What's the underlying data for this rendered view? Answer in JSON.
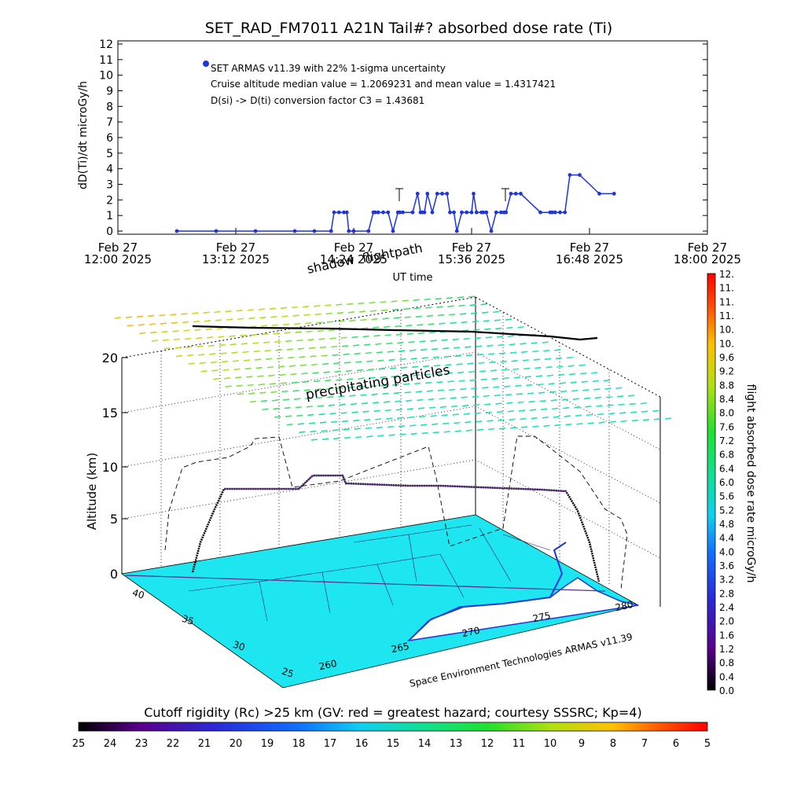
{
  "title": "SET_RAD_FM7011  A21N Tail#? absorbed dose rate (Ti)",
  "top_plot": {
    "ylabel": "dD(Ti)/dt microGy/h",
    "xlabel": "UT time",
    "yticks": [
      "0",
      "1",
      "2",
      "3",
      "4",
      "5",
      "6",
      "7",
      "8",
      "9",
      "10",
      "11",
      "12"
    ],
    "xticks": [
      {
        "top": "Feb 27",
        "bottom": "12:00 2025"
      },
      {
        "top": "Feb 27",
        "bottom": "13:12 2025"
      },
      {
        "top": "Feb 27",
        "bottom": "14:24 2025"
      },
      {
        "top": "Feb 27",
        "bottom": "15:36 2025"
      },
      {
        "top": "Feb 27",
        "bottom": "16:48 2025"
      },
      {
        "top": "Feb 27",
        "bottom": "18:00 2025"
      }
    ],
    "legend_series": "SET ARMAS v11.39 with 22% 1-sigma uncertainty",
    "annotation_median": "Cruise altitude median value = 1.2069231 and mean value = 1.4317421",
    "annotation_c3": "D(si) -> D(ti) conversion factor C3 = 1.43681",
    "series_color": "#1f35d6"
  },
  "chart_data": [
    {
      "type": "line",
      "title": "SET_RAD_FM7011  A21N Tail#? absorbed dose rate (Ti)",
      "xlabel": "UT time",
      "ylabel": "dD(Ti)/dt microGy/h",
      "x_unit": "hours UT, Feb 27 2025",
      "xlim": [
        12.0,
        18.0
      ],
      "ylim": [
        0,
        12
      ],
      "series": [
        {
          "name": "SET ARMAS v11.39 with 22% 1-sigma uncertainty",
          "x": [
            12.6,
            13.0,
            13.4,
            13.8,
            14.0,
            14.17,
            14.2,
            14.25,
            14.3,
            14.33,
            14.35,
            14.4,
            14.55,
            14.6,
            14.62,
            14.65,
            14.7,
            14.75,
            14.8,
            14.85,
            14.87,
            14.9,
            15.0,
            15.05,
            15.08,
            15.1,
            15.12,
            15.15,
            15.2,
            15.25,
            15.3,
            15.35,
            15.38,
            15.42,
            15.45,
            15.5,
            15.55,
            15.6,
            15.62,
            15.65,
            15.7,
            15.72,
            15.75,
            15.8,
            15.85,
            15.9,
            15.93,
            15.95,
            16.0,
            16.05,
            16.1,
            16.3,
            16.4,
            16.42,
            16.45,
            16.5,
            16.55,
            16.6,
            16.7,
            16.9,
            17.05
          ],
          "y": [
            0,
            0,
            0,
            0,
            0,
            0,
            1.2,
            1.2,
            1.2,
            1.2,
            0,
            0,
            0,
            1.2,
            1.2,
            1.2,
            1.2,
            1.2,
            0,
            1.2,
            1.2,
            1.2,
            1.2,
            2.4,
            1.2,
            1.2,
            1.2,
            2.4,
            1.2,
            2.4,
            2.4,
            2.4,
            1.2,
            1.2,
            0,
            1.2,
            1.2,
            1.2,
            2.4,
            1.2,
            1.2,
            1.2,
            1.2,
            0,
            1.2,
            1.2,
            1.2,
            1.2,
            2.4,
            2.4,
            2.4,
            1.2,
            1.2,
            1.2,
            1.2,
            1.2,
            1.2,
            3.6,
            3.6,
            2.4,
            2.4
          ]
        }
      ]
    },
    {
      "type": "scatter",
      "title": "",
      "zlabel": "Altitude (km)",
      "zticks": [
        "0",
        "5",
        "10",
        "15",
        "20"
      ],
      "lat_ticks": [
        "25",
        "30",
        "35",
        "40"
      ],
      "lon_ticks": [
        "260",
        "265",
        "270",
        "275",
        "280"
      ],
      "annotations": [
        "shadow",
        "flightpath",
        "precipitating particles"
      ],
      "credit": "Space Environment Technologies ARMAS v11.39",
      "flight_altitude_km": [
        0.5,
        3.0,
        7.8,
        7.8,
        8.6,
        8.6,
        8.4,
        8.3,
        7.8,
        7.5,
        3.0,
        0.2
      ],
      "particles_altitude_km": 25,
      "colorbar": {
        "label": "flight absorbed dose rate microGy/h",
        "ticks": [
          "0.0",
          "0.4",
          "0.8",
          "1.2",
          "1.6",
          "2.0",
          "2.4",
          "2.8",
          "3.2",
          "3.6",
          "4.0",
          "4.4",
          "4.8",
          "5.2",
          "5.6",
          "6.0",
          "6.4",
          "6.8",
          "7.2",
          "7.6",
          "8.0",
          "8.4",
          "8.8",
          "9.2",
          "9.6",
          "10.",
          "10.",
          "11.",
          "11.",
          "11.",
          "12."
        ]
      }
    },
    {
      "type": "heatmap",
      "title": "Cutoff rigidity (Rc) >25 km (GV: red = greatest hazard; courtesy SSSRC; Kp=4)",
      "ticks": [
        "25",
        "24",
        "23",
        "22",
        "21",
        "20",
        "19",
        "18",
        "17",
        "16",
        "15",
        "14",
        "13",
        "12",
        "11",
        "10",
        "9",
        "8",
        "7",
        "6",
        "5"
      ]
    }
  ],
  "colors": {
    "land": "#1ee6f0",
    "water_edge": "#1f35d6",
    "flight_track": "#000000",
    "flight_track_cruise": "#5a2a8a"
  }
}
